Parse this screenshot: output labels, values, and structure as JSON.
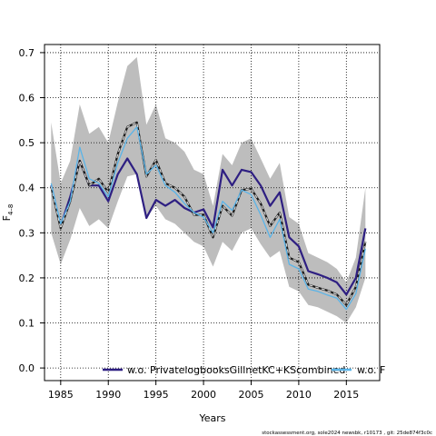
{
  "chart_data": {
    "type": "line",
    "xlabel": "Years",
    "ylabel": "F4–8",
    "ylabel_main": "F",
    "ylabel_sub": "4–8",
    "xlim": [
      1983.3,
      2018.5
    ],
    "ylim": [
      -0.028,
      0.718
    ],
    "x_ticks": [
      1985,
      1990,
      1995,
      2000,
      2005,
      2010,
      2015
    ],
    "y_ticks": [
      0.0,
      0.1,
      0.2,
      0.3,
      0.4,
      0.5,
      0.6,
      0.7
    ],
    "y_tick_labels": [
      "0.0",
      "0.1",
      "0.2",
      "0.3",
      "0.4",
      "0.5",
      "0.6",
      "0.7"
    ],
    "grid": true,
    "legend_position": "bottom",
    "x": [
      1984,
      1985,
      1986,
      1987,
      1988,
      1989,
      1990,
      1991,
      1992,
      1993,
      1994,
      1995,
      1996,
      1997,
      1998,
      1999,
      2000,
      2001,
      2002,
      2003,
      2004,
      2005,
      2006,
      2007,
      2008,
      2009,
      2010,
      2011,
      2012,
      2013,
      2014,
      2015,
      2016,
      2017
    ],
    "band": {
      "upper": [
        0.545,
        0.41,
        0.46,
        0.585,
        0.52,
        0.535,
        0.5,
        0.59,
        0.67,
        0.69,
        0.54,
        0.585,
        0.51,
        0.5,
        0.48,
        0.44,
        0.43,
        0.36,
        0.475,
        0.45,
        0.5,
        0.51,
        0.465,
        0.42,
        0.455,
        0.335,
        0.32,
        0.255,
        0.245,
        0.235,
        0.22,
        0.19,
        0.245,
        0.4
      ],
      "lower": [
        0.3,
        0.23,
        0.285,
        0.355,
        0.315,
        0.33,
        0.31,
        0.37,
        0.425,
        0.43,
        0.335,
        0.36,
        0.33,
        0.32,
        0.3,
        0.28,
        0.27,
        0.225,
        0.28,
        0.26,
        0.3,
        0.31,
        0.275,
        0.245,
        0.26,
        0.18,
        0.17,
        0.14,
        0.135,
        0.125,
        0.115,
        0.1,
        0.135,
        0.2
      ]
    },
    "series": [
      {
        "name": "w.o. PrivatelogbooksGillnetKC+KScombined",
        "color": "#2e1f82",
        "style": "solid",
        "values": [
          0.405,
          0.315,
          0.38,
          0.46,
          0.405,
          0.405,
          0.37,
          0.43,
          0.465,
          0.43,
          0.333,
          0.373,
          0.36,
          0.373,
          0.355,
          0.345,
          0.352,
          0.312,
          0.44,
          0.405,
          0.44,
          0.435,
          0.405,
          0.36,
          0.39,
          0.29,
          0.27,
          0.215,
          0.208,
          0.2,
          0.19,
          0.163,
          0.2,
          0.31
        ]
      },
      {
        "name": "",
        "color": "#1a1a1a",
        "style": "solid",
        "values": [
          0.403,
          0.31,
          0.37,
          0.46,
          0.405,
          0.42,
          0.39,
          0.475,
          0.535,
          0.545,
          0.425,
          0.462,
          0.41,
          0.4,
          0.38,
          0.34,
          0.34,
          0.29,
          0.36,
          0.338,
          0.395,
          0.398,
          0.365,
          0.315,
          0.345,
          0.245,
          0.235,
          0.185,
          0.178,
          0.172,
          0.163,
          0.14,
          0.18,
          0.28
        ]
      },
      {
        "name": "",
        "color": "#d8d8d8",
        "style": "dashed",
        "values": [
          0.403,
          0.31,
          0.37,
          0.46,
          0.405,
          0.42,
          0.39,
          0.475,
          0.535,
          0.545,
          0.425,
          0.462,
          0.41,
          0.4,
          0.38,
          0.34,
          0.34,
          0.29,
          0.36,
          0.338,
          0.395,
          0.398,
          0.365,
          0.315,
          0.345,
          0.245,
          0.235,
          0.185,
          0.178,
          0.172,
          0.163,
          0.14,
          0.18,
          0.28
        ]
      },
      {
        "name": "w.o. F",
        "color": "#5ab4e8",
        "style": "solid",
        "values": [
          0.41,
          0.32,
          0.37,
          0.49,
          0.42,
          0.41,
          0.38,
          0.455,
          0.51,
          0.535,
          0.43,
          0.45,
          0.405,
          0.39,
          0.365,
          0.345,
          0.335,
          0.3,
          0.37,
          0.35,
          0.395,
          0.385,
          0.34,
          0.29,
          0.33,
          0.23,
          0.22,
          0.175,
          0.17,
          0.162,
          0.155,
          0.13,
          0.165,
          0.265
        ]
      }
    ],
    "legend": [
      {
        "label": "w.o. PrivatelogbooksGillnetKC+KScombined",
        "color": "#2e1f82"
      },
      {
        "label": "w.o. F",
        "color": "#5ab4e8"
      }
    ]
  },
  "footer": "stockassessment.org, sole2024 newsbk, r10173 , git: 25de874f3c0c"
}
